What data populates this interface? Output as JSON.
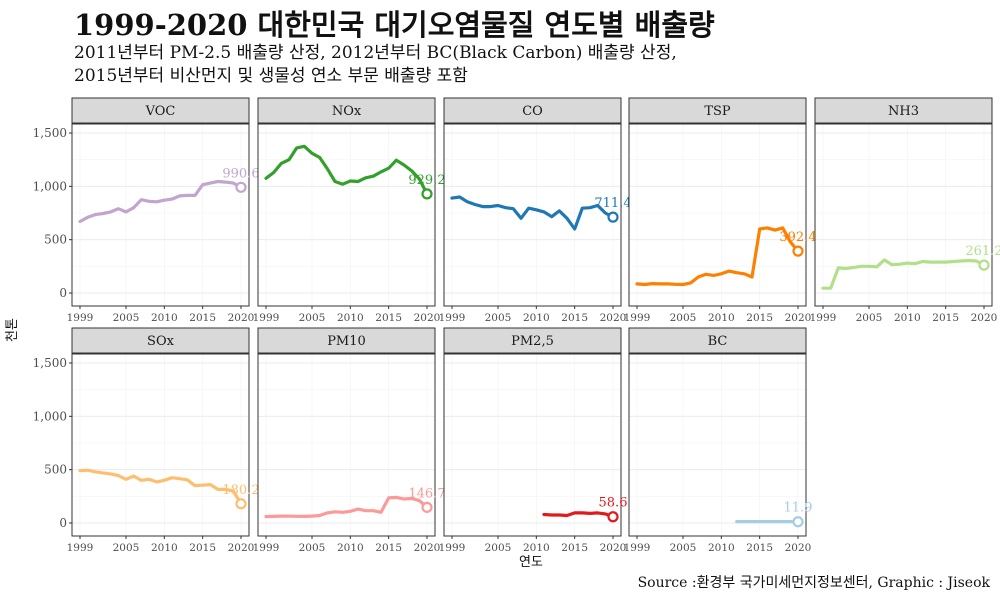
{
  "title": "1999-2020 대한민국 대기오염물질 연도별 배출량",
  "subtitle_lines": [
    "2011년부터 PM-2.5 배출량 산정, 2012년부터 BC(Black Carbon) 배출량 산정,",
    "2015년부터 비산먼지 및 생물성 연소 부문 배출량 포함"
  ],
  "caption": "Source :환경부 국가미세먼지정보센터, Graphic : Jiseok",
  "chart_data": {
    "type": "line",
    "xlabel": "연도",
    "ylabel": "천톤",
    "xlim": [
      1999,
      2020
    ],
    "ylim": [
      0,
      1500
    ],
    "x_ticks": [
      1999,
      2005,
      2010,
      2015,
      2020
    ],
    "y_ticks": [
      0,
      500,
      1000,
      1500
    ],
    "y_tick_labels": [
      "0",
      "500",
      "1,000",
      "1,500"
    ],
    "grid": true,
    "panels": [
      {
        "name": "VOC",
        "color": "#C2A5CF",
        "label": "990.6",
        "x": [
          1999,
          2000,
          2001,
          2002,
          2003,
          2004,
          2005,
          2006,
          2007,
          2008,
          2009,
          2010,
          2011,
          2012,
          2013,
          2014,
          2015,
          2016,
          2017,
          2018,
          2019,
          2020
        ],
        "values": [
          670,
          710,
          735,
          745,
          760,
          790,
          760,
          800,
          875,
          860,
          855,
          870,
          880,
          910,
          915,
          915,
          1015,
          1030,
          1045,
          1040,
          1030,
          990.6
        ]
      },
      {
        "name": "NOx",
        "color": "#33A02C",
        "label": "929.2",
        "x": [
          1999,
          2000,
          2001,
          2002,
          2003,
          2004,
          2005,
          2006,
          2007,
          2008,
          2009,
          2010,
          2011,
          2012,
          2013,
          2014,
          2015,
          2016,
          2017,
          2018,
          2019,
          2020
        ],
        "values": [
          1075,
          1130,
          1215,
          1250,
          1360,
          1375,
          1310,
          1270,
          1165,
          1045,
          1020,
          1050,
          1045,
          1080,
          1095,
          1135,
          1170,
          1245,
          1200,
          1145,
          1070,
          929.2
        ]
      },
      {
        "name": "CO",
        "color": "#1F78B4",
        "label": "711.4",
        "x": [
          1999,
          2000,
          2001,
          2002,
          2003,
          2004,
          2005,
          2006,
          2007,
          2008,
          2009,
          2010,
          2011,
          2012,
          2013,
          2014,
          2015,
          2016,
          2017,
          2018,
          2019,
          2020
        ],
        "values": [
          890,
          900,
          855,
          830,
          810,
          810,
          820,
          800,
          790,
          700,
          795,
          780,
          760,
          715,
          770,
          700,
          600,
          795,
          800,
          820,
          750,
          711.4
        ]
      },
      {
        "name": "TSP",
        "color": "#FF7F00",
        "label": "392.4",
        "x": [
          1999,
          2000,
          2001,
          2002,
          2003,
          2004,
          2005,
          2006,
          2007,
          2008,
          2009,
          2010,
          2011,
          2012,
          2013,
          2014,
          2015,
          2016,
          2017,
          2018,
          2019,
          2020
        ],
        "values": [
          85,
          80,
          88,
          85,
          85,
          82,
          80,
          95,
          150,
          175,
          165,
          180,
          205,
          190,
          180,
          150,
          600,
          610,
          590,
          610,
          480,
          392.4
        ]
      },
      {
        "name": "NH3",
        "color": "#B2DF8A",
        "label": "261.2",
        "x": [
          1999,
          2000,
          2001,
          2002,
          2003,
          2004,
          2005,
          2006,
          2007,
          2008,
          2009,
          2010,
          2011,
          2012,
          2013,
          2014,
          2015,
          2016,
          2017,
          2018,
          2019,
          2020
        ],
        "values": [
          45,
          45,
          235,
          230,
          240,
          250,
          250,
          245,
          310,
          265,
          270,
          280,
          275,
          295,
          290,
          290,
          290,
          295,
          300,
          305,
          300,
          261.2
        ]
      },
      {
        "name": "SOx",
        "color": "#FDBF6F",
        "label": "180.2",
        "x": [
          1999,
          2000,
          2001,
          2002,
          2003,
          2004,
          2005,
          2006,
          2007,
          2008,
          2009,
          2010,
          2011,
          2012,
          2013,
          2014,
          2015,
          2016,
          2017,
          2018,
          2019,
          2020
        ],
        "values": [
          490,
          495,
          480,
          470,
          460,
          445,
          410,
          440,
          400,
          410,
          385,
          400,
          425,
          415,
          405,
          350,
          355,
          360,
          315,
          315,
          300,
          180.2
        ]
      },
      {
        "name": "PM10",
        "color": "#FB9A99",
        "label": "146.7",
        "x": [
          1999,
          2000,
          2001,
          2002,
          2003,
          2004,
          2005,
          2006,
          2007,
          2008,
          2009,
          2010,
          2011,
          2012,
          2013,
          2014,
          2015,
          2016,
          2017,
          2018,
          2019,
          2020
        ],
        "values": [
          60,
          62,
          65,
          65,
          63,
          62,
          65,
          70,
          95,
          105,
          100,
          110,
          130,
          115,
          115,
          100,
          235,
          240,
          225,
          230,
          210,
          146.7
        ]
      },
      {
        "name": "PM2,5",
        "color": "#E31A1C",
        "label": "58.6",
        "x": [
          2011,
          2012,
          2013,
          2014,
          2015,
          2016,
          2017,
          2018,
          2019,
          2020
        ],
        "values": [
          80,
          75,
          75,
          70,
          95,
          95,
          90,
          95,
          85,
          58.6
        ]
      },
      {
        "name": "BC",
        "color": "#A6CEE3",
        "label": "11.9",
        "x": [
          2012,
          2013,
          2014,
          2015,
          2016,
          2017,
          2018,
          2019,
          2020
        ],
        "values": [
          13,
          13,
          13,
          13,
          13,
          13,
          13,
          13,
          11.9
        ]
      }
    ]
  }
}
